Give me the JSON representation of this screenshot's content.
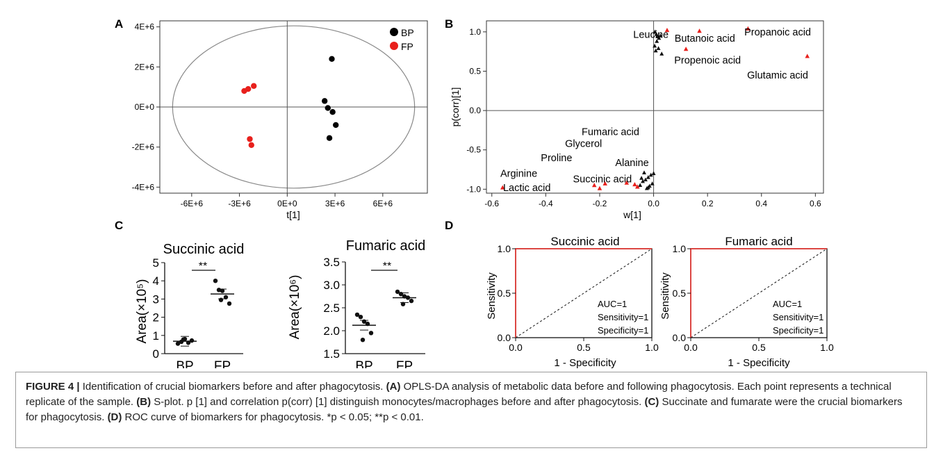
{
  "figure": {
    "panel_letters": [
      "A",
      "B",
      "C",
      "D"
    ]
  },
  "chart_data": [
    {
      "panel": "A",
      "type": "scatter",
      "xlabel": "t[1]",
      "ylabel": "",
      "xlim": [
        -8000000,
        8800000
      ],
      "ylim": [
        -4300000,
        4300000
      ],
      "x_ticks": [
        -6000000,
        -3000000,
        0,
        3000000,
        6000000
      ],
      "x_tick_labels": [
        "-6E+6",
        "-3E+6",
        "0E+0",
        "3E+6",
        "6E+6"
      ],
      "y_ticks": [
        4000000,
        2000000,
        0,
        -2000000,
        -4000000
      ],
      "y_tick_labels": [
        "4E+6",
        "2E+6",
        "0E+0",
        "-2E+6",
        "-4E+6"
      ],
      "ellipse": {
        "center": [
          400000,
          0
        ],
        "rx": 7600000,
        "ry": 4050000
      },
      "legend_position": "top-right",
      "series": [
        {
          "name": "BP",
          "color": "#000000",
          "x": [
            2800000,
            2350000,
            2550000,
            2850000,
            3050000,
            2650000
          ],
          "y": [
            2400000,
            300000,
            -50000,
            -250000,
            -900000,
            -1550000
          ]
        },
        {
          "name": "FP",
          "color": "#e8201c",
          "x": [
            -2100000,
            -2450000,
            -2700000,
            -2350000,
            -2250000
          ],
          "y": [
            1050000,
            900000,
            800000,
            -1600000,
            -1900000
          ]
        }
      ]
    },
    {
      "panel": "B",
      "type": "scatter",
      "xlabel": "w[1]",
      "ylabel": "p(corr)[1]",
      "xlim": [
        -0.62,
        0.63
      ],
      "ylim": [
        -1.05,
        1.14
      ],
      "x_ticks": [
        -0.6,
        -0.4,
        -0.2,
        0.0,
        0.2,
        0.4,
        0.6
      ],
      "x_tick_labels": [
        "-0.6",
        "-0.4",
        "-0.2",
        "0.0",
        "0.2",
        "0.4",
        "0.6"
      ],
      "y_ticks": [
        1.0,
        0.5,
        0.0,
        -0.5,
        -1.0
      ],
      "y_tick_labels": [
        "1.0",
        "0.5",
        "0.0",
        "-0.5",
        "-1.0"
      ],
      "red_points": {
        "x": [
          0.05,
          0.12,
          0.17,
          0.35,
          0.57,
          -0.56,
          -0.22,
          -0.2,
          -0.18,
          -0.1,
          -0.07,
          -0.06
        ],
        "y": [
          1.02,
          0.78,
          1.01,
          1.04,
          0.69,
          -0.98,
          -0.95,
          -0.99,
          -0.93,
          -0.92,
          -0.94,
          -0.97
        ]
      },
      "black_points": {
        "x": [
          0.005,
          0.01,
          0.015,
          0.02,
          0.025,
          0.012,
          0.004,
          0.008,
          0.03,
          0.018,
          0.0,
          -0.01,
          -0.02,
          -0.03,
          -0.04,
          -0.05,
          -0.06,
          -0.02,
          -0.005,
          -0.015,
          -0.035,
          -0.045,
          -0.025
        ],
        "y": [
          1.0,
          0.97,
          0.94,
          0.92,
          0.95,
          0.88,
          0.82,
          0.76,
          0.72,
          0.79,
          -0.8,
          -0.82,
          -0.85,
          -0.88,
          -0.9,
          -0.95,
          -0.97,
          -0.98,
          -0.93,
          -0.96,
          -0.79,
          -0.86,
          -0.99
        ]
      },
      "annotations": [
        {
          "text": "Leucine",
          "x": -0.01,
          "y": 0.97
        },
        {
          "text": "Butanoic acid",
          "x": 0.19,
          "y": 0.92
        },
        {
          "text": "Propanoic acid",
          "x": 0.46,
          "y": 1.0
        },
        {
          "text": "Propenoic acid",
          "x": 0.2,
          "y": 0.64
        },
        {
          "text": "Glutamic acid",
          "x": 0.46,
          "y": 0.45
        },
        {
          "text": "Fumaric acid",
          "x": -0.16,
          "y": -0.27
        },
        {
          "text": "Glycerol",
          "x": -0.26,
          "y": -0.42
        },
        {
          "text": "Proline",
          "x": -0.36,
          "y": -0.6
        },
        {
          "text": "Alanine",
          "x": -0.08,
          "y": -0.66
        },
        {
          "text": "Arginine",
          "x": -0.5,
          "y": -0.8
        },
        {
          "text": "Succinic acid",
          "x": -0.19,
          "y": -0.87
        },
        {
          "text": "Lactic acid",
          "x": -0.47,
          "y": -0.98
        }
      ]
    },
    {
      "panel": "C",
      "type": "scatter",
      "title": "Succinic acid",
      "ylabel": "Area(×10⁵)",
      "categories": [
        "BP",
        "FP"
      ],
      "ylim": [
        0,
        5
      ],
      "y_ticks": [
        0,
        1,
        2,
        3,
        4,
        5
      ],
      "y_tick_labels": [
        "0",
        "1",
        "2",
        "3",
        "4",
        "5"
      ],
      "significance": "**",
      "series": [
        {
          "name": "BP",
          "values": [
            0.55,
            0.65,
            0.8,
            0.6,
            0.72,
            0.78
          ],
          "mean": 0.68
        },
        {
          "name": "FP",
          "values": [
            4.0,
            3.5,
            3.45,
            3.1,
            2.75,
            2.95
          ],
          "mean": 3.28
        }
      ]
    },
    {
      "panel": "C",
      "type": "scatter",
      "title": "Fumaric acid",
      "ylabel": "Area(×10⁶)",
      "categories": [
        "BP",
        "FP"
      ],
      "ylim": [
        1.5,
        3.5
      ],
      "y_ticks": [
        1.5,
        2.0,
        2.5,
        3.0,
        3.5
      ],
      "y_tick_labels": [
        "1.5",
        "2.0",
        "2.5",
        "3.0",
        "3.5"
      ],
      "significance": "**",
      "series": [
        {
          "name": "BP",
          "values": [
            2.35,
            2.3,
            2.2,
            2.15,
            1.95,
            1.8
          ],
          "mean": 2.12
        },
        {
          "name": "FP",
          "values": [
            2.85,
            2.8,
            2.75,
            2.72,
            2.65,
            2.58
          ],
          "mean": 2.72
        }
      ]
    },
    {
      "panel": "D",
      "type": "line",
      "title": "Succinic acid",
      "xlabel": "1 - Specificity",
      "ylabel": "Sensitivity",
      "xlim": [
        0,
        1
      ],
      "ylim": [
        0,
        1
      ],
      "x_ticks": [
        0.0,
        0.5,
        1.0
      ],
      "x_tick_labels": [
        "0.0",
        "0.5",
        "1.0"
      ],
      "y_ticks": [
        0.0,
        0.5,
        1.0
      ],
      "y_tick_labels": [
        "0.0",
        "0.5",
        "1.0"
      ],
      "roc": {
        "x": [
          0,
          0,
          1
        ],
        "y": [
          0,
          1,
          1
        ]
      },
      "stats": [
        "AUC=1",
        "Sensitivity=1",
        "Specificity=1"
      ]
    },
    {
      "panel": "D",
      "type": "line",
      "title": "Fumaric acid",
      "xlabel": "1 - Specificity",
      "ylabel": "Sensitivity",
      "xlim": [
        0,
        1
      ],
      "ylim": [
        0,
        1
      ],
      "x_ticks": [
        0.0,
        0.5,
        1.0
      ],
      "x_tick_labels": [
        "0.0",
        "0.5",
        "1.0"
      ],
      "y_ticks": [
        0.0,
        0.5,
        1.0
      ],
      "y_tick_labels": [
        "0.0",
        "0.5",
        "1.0"
      ],
      "roc": {
        "x": [
          0,
          0,
          1
        ],
        "y": [
          0,
          1,
          1
        ]
      },
      "stats": [
        "AUC=1",
        "Sensitivity=1",
        "Specificity=1"
      ]
    }
  ],
  "caption": {
    "label": "FIGURE 4 |",
    "title": " Identification of crucial biomarkers before and after phagocytosis. ",
    "a_label": "(A)",
    "a_text": " OPLS-DA analysis of metabolic data before and following phagocytosis. Each point represents a technical replicate of the sample. ",
    "b_label": "(B)",
    "b_text": " S-plot. p [1] and correlation p(corr) [1] distinguish monocytes/macrophages before and after phagocytosis. ",
    "c_label": "(C)",
    "c_text": " Succinate and fumarate were the crucial biomarkers for phagocytosis. ",
    "d_label": "(D)",
    "d_text": " ROC curve of biomarkers for phagocytosis. *p < 0.05; **p < 0.01."
  }
}
